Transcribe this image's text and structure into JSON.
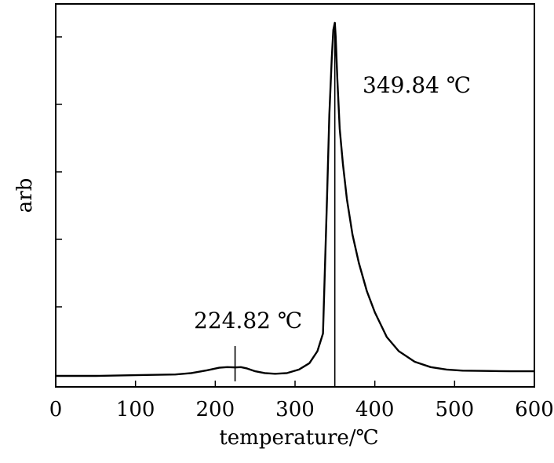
{
  "chart_data": {
    "type": "line",
    "xlabel": "temperature/℃",
    "ylabel": "arb",
    "xlim": [
      0,
      600
    ],
    "ylim": [
      0,
      1.0
    ],
    "x_ticks": [
      "0",
      "100",
      "200",
      "300",
      "400",
      "500",
      "600"
    ],
    "y_ticks_labeled": false,
    "grid": false,
    "series": [
      {
        "x": [
          0,
          50,
          100,
          150,
          170,
          190,
          205,
          215,
          225,
          232,
          240,
          250,
          262,
          275,
          290,
          305,
          318,
          328,
          335,
          340,
          343,
          346,
          348,
          349.84,
          351,
          353,
          356,
          360,
          365,
          372,
          380,
          390,
          400,
          415,
          430,
          450,
          470,
          490,
          510,
          540,
          570,
          600
        ],
        "y": [
          0.0,
          0.0,
          0.002,
          0.004,
          0.008,
          0.016,
          0.023,
          0.025,
          0.024,
          0.025,
          0.021,
          0.013,
          0.008,
          0.006,
          0.008,
          0.018,
          0.036,
          0.07,
          0.12,
          0.5,
          0.74,
          0.9,
          0.98,
          1.0,
          0.96,
          0.84,
          0.7,
          0.6,
          0.5,
          0.4,
          0.32,
          0.24,
          0.18,
          0.11,
          0.07,
          0.04,
          0.025,
          0.018,
          0.015,
          0.014,
          0.013,
          0.013
        ]
      }
    ],
    "annotations": [
      {
        "text": "349.84 ℃",
        "x": 349.84
      },
      {
        "text": "224.82 ℃",
        "x": 224.82
      }
    ]
  }
}
